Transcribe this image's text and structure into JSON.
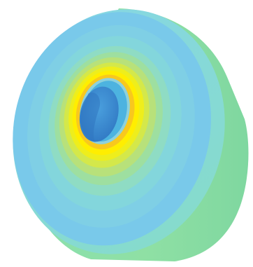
{
  "figure": {
    "subject": "cylindrical-bushing-contour-plot",
    "background": "#ffffff",
    "colors": {
      "body_side_light": "#8fe0a4",
      "body_side_dark": "#7fd7a0",
      "outer_rim": "#7fd3e4",
      "face_outer": "#79c9ea",
      "face_band_1": "#83d6dc",
      "face_band_2": "#8fdcc4",
      "face_band_3": "#9edfa0",
      "face_band_4": "#b8e17a",
      "face_band_5": "#d4e84a",
      "face_band_6": "#eeee1c",
      "face_band_7": "#ffee00",
      "face_band_8": "#f8c81e",
      "bore_edge": "#4db3e0",
      "bore": "#3b8fd6",
      "bore_shadow": "#2f74c0"
    }
  }
}
